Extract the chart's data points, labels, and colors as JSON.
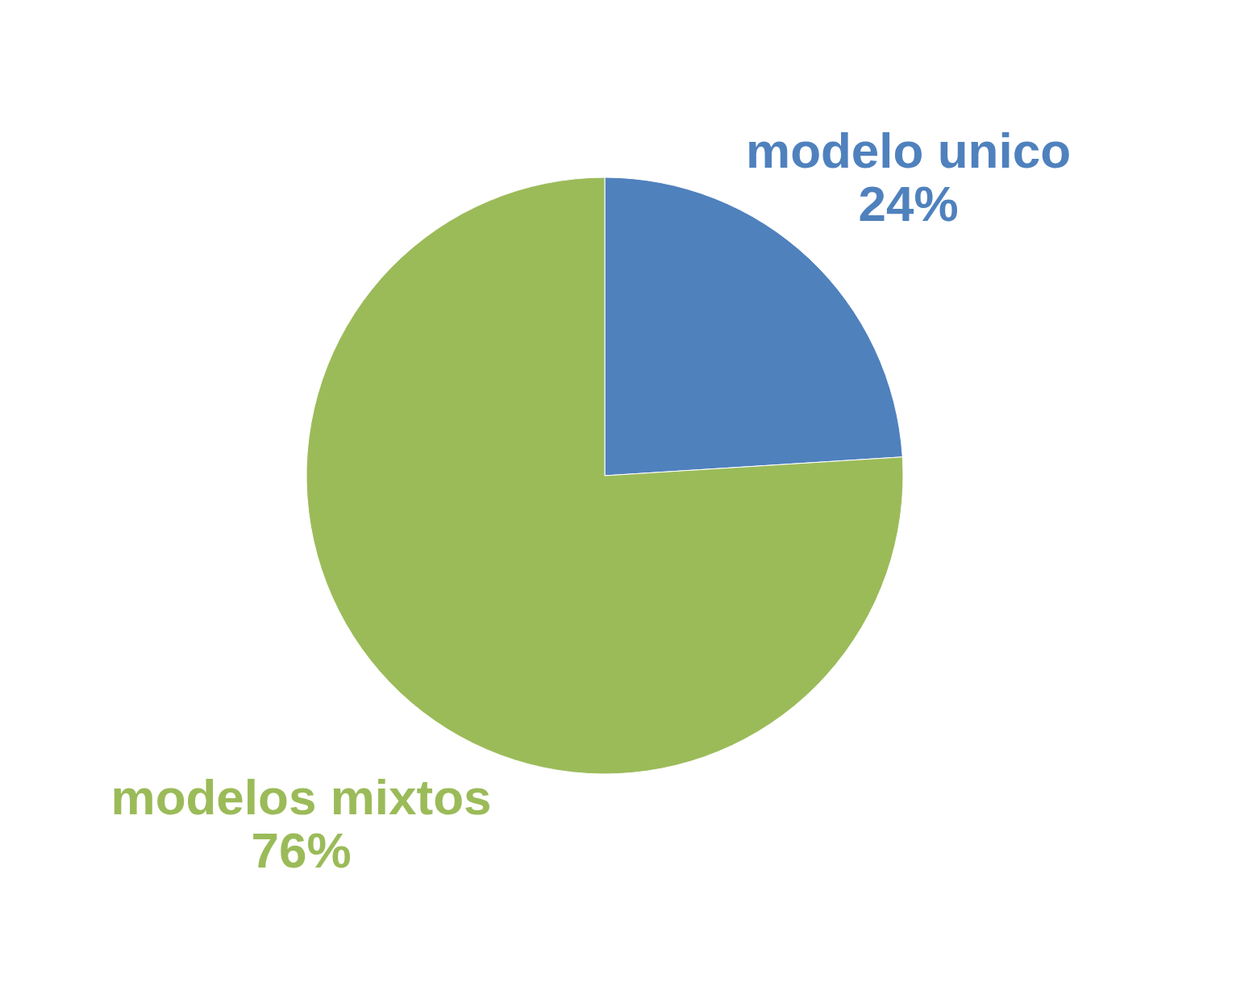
{
  "chart_data": {
    "type": "pie",
    "categories": [
      "modelo unico",
      "modelos mixtos"
    ],
    "values": [
      24,
      76
    ],
    "colors": [
      "#4f81bd",
      "#9bbb59"
    ],
    "value_labels": [
      "24%",
      "76%"
    ]
  }
}
